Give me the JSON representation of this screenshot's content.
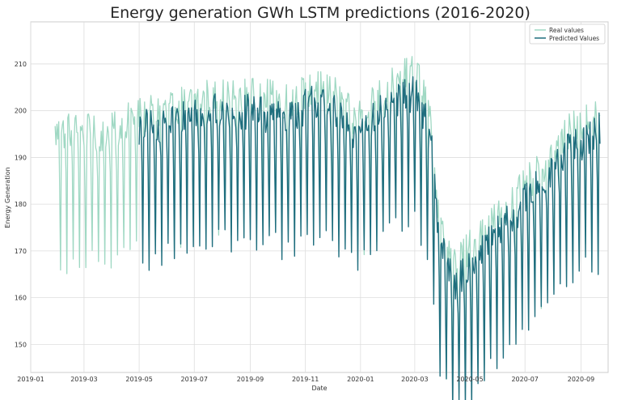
{
  "chart_data": {
    "type": "line",
    "title": "Energy generation GWh LSTM predictions (2016-2020)",
    "xlabel": "Date",
    "ylabel": "Energy Generation",
    "xlim": [
      "2019-01-01",
      "2020-10-01"
    ],
    "ylim": [
      144,
      219
    ],
    "x_ticks": [
      "2019-01",
      "2019-03",
      "2019-05",
      "2019-07",
      "2019-09",
      "2019-11",
      "2020-01",
      "2020-03",
      "2020-05",
      "2020-07",
      "2020-09"
    ],
    "y_ticks": [
      150,
      160,
      170,
      180,
      190,
      200,
      210
    ],
    "grid": true,
    "legend_position": "top-right",
    "series": [
      {
        "name": "Real values",
        "color": "#9fd8c3",
        "x_start": "2019-01-28",
        "x_end": "2020-09-22",
        "anchors": [
          [
            "2019-01-28",
            195
          ],
          [
            "2019-02-15",
            196
          ],
          [
            "2019-03-15",
            195
          ],
          [
            "2019-04-10",
            196
          ],
          [
            "2019-04-22",
            199
          ],
          [
            "2019-05-10",
            199
          ],
          [
            "2019-06-10",
            201
          ],
          [
            "2019-07-10",
            203
          ],
          [
            "2019-08-15",
            203
          ],
          [
            "2019-09-15",
            203
          ],
          [
            "2019-10-15",
            202
          ],
          [
            "2019-11-10",
            205
          ],
          [
            "2019-12-01",
            204
          ],
          [
            "2019-12-25",
            198
          ],
          [
            "2020-01-10",
            201
          ],
          [
            "2020-02-15",
            207
          ],
          [
            "2020-03-05",
            208
          ],
          [
            "2020-03-20",
            196
          ],
          [
            "2020-03-28",
            175
          ],
          [
            "2020-04-15",
            167
          ],
          [
            "2020-05-15",
            174
          ],
          [
            "2020-06-15",
            180
          ],
          [
            "2020-07-15",
            187
          ],
          [
            "2020-08-15",
            195
          ],
          [
            "2020-09-22",
            199
          ]
        ],
        "trough_depth": 28
      },
      {
        "name": "Predicted Values",
        "color": "#1f6e7e",
        "x_start": "2019-05-01",
        "x_end": "2020-09-22",
        "anchors": [
          [
            "2019-05-01",
            196
          ],
          [
            "2019-06-10",
            198
          ],
          [
            "2019-07-10",
            200
          ],
          [
            "2019-08-15",
            200
          ],
          [
            "2019-09-15",
            199
          ],
          [
            "2019-10-15",
            199
          ],
          [
            "2019-11-10",
            202
          ],
          [
            "2019-12-01",
            200
          ],
          [
            "2019-12-25",
            194
          ],
          [
            "2020-01-10",
            198
          ],
          [
            "2020-02-15",
            203
          ],
          [
            "2020-03-05",
            204
          ],
          [
            "2020-03-20",
            192
          ],
          [
            "2020-03-28",
            172
          ],
          [
            "2020-04-15",
            163
          ],
          [
            "2020-05-15",
            170
          ],
          [
            "2020-06-15",
            177
          ],
          [
            "2020-07-15",
            184
          ],
          [
            "2020-08-15",
            191
          ],
          [
            "2020-09-22",
            196
          ]
        ],
        "trough_depth": 28
      }
    ]
  }
}
